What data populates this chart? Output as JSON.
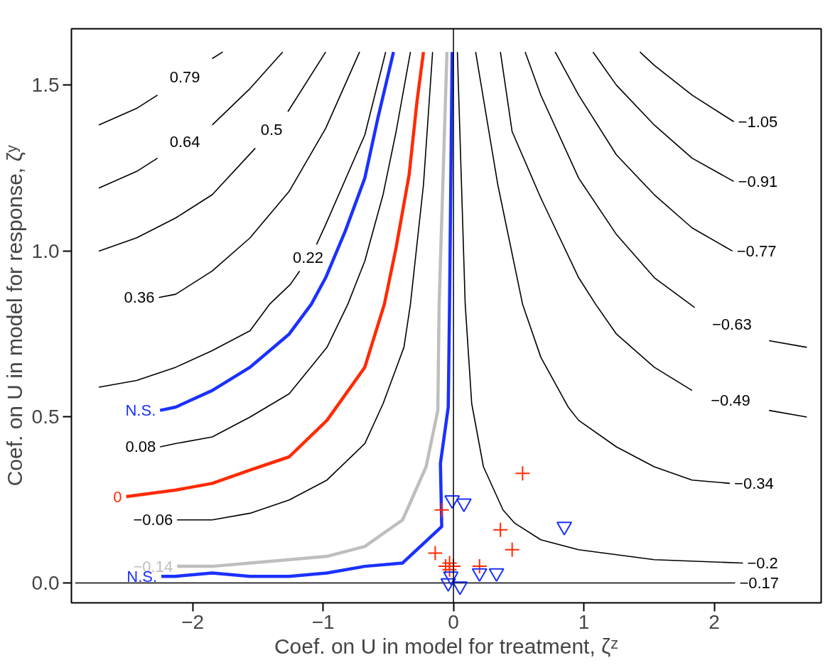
{
  "chart_data": {
    "type": "line",
    "xlabel": "Coef. on U in model for treatment, ζᶻ",
    "ylabel": "Coef. on U in model for response, ζʸ",
    "xlim": [
      -2.93,
      2.82
    ],
    "ylim": [
      -0.06,
      1.67
    ],
    "xticks": [
      {
        "value": -2,
        "label": "−2"
      },
      {
        "value": -1,
        "label": "−1"
      },
      0,
      1,
      2
    ],
    "yticks": [
      {
        "value": 0,
        "label": "0.0"
      },
      {
        "value": 0.5,
        "label": "0.5"
      },
      {
        "value": 1,
        "label": "1.0"
      },
      {
        "value": 1.5,
        "label": "1.5"
      }
    ],
    "grid": false,
    "marker": "none",
    "ref_lines": [
      {
        "axis": "x",
        "value": 0,
        "color": "#000000"
      }
    ],
    "series": [
      {
        "name": "0.79",
        "color": "#000000",
        "x": [
          -2.72,
          -2.43,
          -2.27,
          -2.06,
          -1.85,
          -1.77
        ],
        "values": [
          1.38,
          1.43,
          1.47,
          null,
          1.58,
          1.6
        ]
      },
      {
        "name": "0.64",
        "color": "#000000",
        "x": [
          -2.72,
          -2.43,
          -2.27,
          -2.06,
          -1.85,
          -1.56,
          -1.31
        ],
        "values": [
          1.19,
          1.24,
          1.28,
          null,
          1.38,
          1.49,
          1.6
        ]
      },
      {
        "name": "0.5",
        "color": "#000000",
        "x": [
          -2.72,
          -2.43,
          -2.13,
          -1.85,
          -1.52,
          -1.4,
          -1.27,
          -0.98
        ],
        "values": [
          1.0,
          1.04,
          1.1,
          1.17,
          1.31,
          null,
          1.42,
          1.6
        ]
      },
      {
        "name": "0.36",
        "color": "#000000",
        "x": [
          -2.26,
          -2.13,
          -1.85,
          -1.56,
          -1.26,
          -0.98,
          -0.72
        ],
        "values": [
          0.86,
          0.87,
          0.94,
          1.04,
          1.18,
          1.37,
          1.6
        ]
      },
      {
        "name": "0.22",
        "color": "#000000",
        "x": [
          -2.72,
          -2.43,
          -2.13,
          -1.85,
          -1.56,
          -1.41,
          -1.25,
          -1.18,
          -1.12,
          -1.05,
          -0.98,
          -0.68,
          -0.52
        ],
        "values": [
          0.59,
          0.61,
          0.65,
          0.7,
          0.76,
          0.84,
          0.9,
          0.94,
          null,
          1.02,
          1.08,
          1.35,
          1.6
        ]
      },
      {
        "name": "N.S.",
        "color": "#1a31ff",
        "x": [
          -2.25,
          -2.13,
          -1.85,
          -1.56,
          -1.26,
          -1.09,
          -0.98,
          -0.83,
          -0.68,
          -0.58,
          -0.46
        ],
        "values": [
          0.52,
          0.53,
          0.58,
          0.65,
          0.75,
          0.84,
          0.92,
          1.06,
          1.22,
          1.4,
          1.6
        ]
      },
      {
        "name": "0.08",
        "color": "#000000",
        "x": [
          -2.25,
          -2.13,
          -1.85,
          -1.56,
          -1.26,
          -0.97,
          -0.81,
          -0.68,
          -0.54,
          -0.44,
          -0.33
        ],
        "values": [
          0.41,
          0.42,
          0.44,
          0.5,
          0.57,
          0.71,
          0.84,
          0.97,
          1.17,
          1.36,
          1.6
        ]
      },
      {
        "name": "0",
        "color": "#ff2a00",
        "x": [
          -2.51,
          -2.13,
          -1.85,
          -1.56,
          -1.26,
          -0.97,
          -0.68,
          -0.53,
          -0.44,
          -0.34,
          -0.28,
          -0.23
        ],
        "values": [
          0.26,
          0.28,
          0.3,
          0.34,
          0.38,
          0.49,
          0.65,
          0.84,
          1.01,
          1.23,
          1.45,
          1.6
        ]
      },
      {
        "name": "−0.06",
        "color": "#000000",
        "x": [
          -2.12,
          -1.85,
          -1.56,
          -1.26,
          -0.97,
          -0.68,
          -0.54,
          -0.38,
          -0.33,
          -0.23,
          -0.16
        ],
        "values": [
          0.19,
          0.19,
          0.21,
          0.25,
          0.31,
          0.42,
          0.54,
          0.71,
          0.84,
          1.2,
          1.6
        ]
      },
      {
        "name": "−0.14",
        "color": "#bebebe",
        "x": [
          -2.12,
          -1.85,
          -1.56,
          -1.26,
          -0.97,
          -0.68,
          -0.39,
          -0.21,
          -0.12,
          -0.11,
          -0.05
        ],
        "values": [
          0.05,
          0.05,
          0.06,
          0.07,
          0.08,
          0.11,
          0.19,
          0.35,
          0.52,
          0.84,
          1.6
        ]
      },
      {
        "name": "N.S.",
        "color": "#1a31ff",
        "x": [
          -2.24,
          -2.13,
          -1.85,
          -1.56,
          -1.26,
          -0.97,
          -0.68,
          -0.39,
          -0.09,
          -0.1,
          -0.04,
          -0.03,
          -0.01
        ],
        "values": [
          0.02,
          0.02,
          0.03,
          0.02,
          0.02,
          0.03,
          0.05,
          0.06,
          0.17,
          0.36,
          0.53,
          0.84,
          1.6
        ]
      },
      {
        "name": "−0.2",
        "color": "#000000",
        "x": [
          2.22,
          1.54,
          0.96,
          0.67,
          0.47,
          0.38,
          0.23,
          0.14,
          0.09,
          0.03
        ],
        "values": [
          0.06,
          0.07,
          0.1,
          0.13,
          0.18,
          0.22,
          0.35,
          0.54,
          0.84,
          1.6
        ]
      },
      {
        "name": "−0.17",
        "color": "#000000",
        "x": [
          2.16,
          -2.9
        ],
        "values": [
          0,
          0
        ]
      },
      {
        "name": "−0.34",
        "color": "#000000",
        "x": [
          2.12,
          1.83,
          1.54,
          1.25,
          0.96,
          0.88,
          0.67,
          0.53,
          0.34,
          0.17
        ],
        "values": [
          0.3,
          0.31,
          0.35,
          0.41,
          0.49,
          0.53,
          0.68,
          0.84,
          1.2,
          1.6
        ]
      },
      {
        "name": "−0.49",
        "color": "#000000",
        "x": [
          0.36,
          0.45,
          0.67,
          0.96,
          1.09,
          1.25,
          1.54,
          1.83,
          2.12,
          2.42,
          2.71
        ],
        "values": [
          1.6,
          1.36,
          1.16,
          0.92,
          0.84,
          0.75,
          0.65,
          0.58,
          null,
          0.52,
          0.5
        ]
      },
      {
        "name": "−0.63",
        "color": "#000000",
        "x": [
          0.55,
          0.67,
          0.96,
          1.25,
          1.54,
          1.85,
          2.18,
          2.42,
          2.71
        ],
        "values": [
          1.6,
          1.47,
          1.22,
          1.05,
          0.92,
          0.83,
          null,
          0.73,
          0.71
        ]
      },
      {
        "name": "−0.77",
        "color": "#000000",
        "x": [
          2.14,
          1.83,
          1.54,
          1.25,
          0.96,
          0.78
        ],
        "values": [
          1.0,
          1.07,
          1.17,
          1.29,
          1.47,
          1.6
        ]
      },
      {
        "name": "−0.91",
        "color": "#000000",
        "x": [
          2.15,
          1.83,
          1.54,
          1.25,
          1.07
        ],
        "values": [
          1.21,
          1.28,
          1.38,
          1.5,
          1.6
        ]
      },
      {
        "name": "−1.05",
        "color": "#000000",
        "x": [
          2.15,
          1.83,
          1.54,
          1.43
        ],
        "values": [
          1.39,
          1.47,
          1.56,
          1.6
        ]
      },
      {
        "type": "scatter",
        "marker": "cross",
        "color": "#ff2a00",
        "x": [
          0.53,
          0.36,
          0.45,
          0.2,
          -0.03,
          -0.09,
          -0.14,
          -0.06,
          -0.03,
          0.0
        ],
        "values": [
          0.33,
          0.16,
          0.1,
          0.05,
          0.06,
          0.22,
          0.09,
          0.05,
          0.04,
          0.05
        ]
      },
      {
        "type": "scatter",
        "marker": "triangle",
        "color": "#1a31ff",
        "x": [
          0.85,
          0.08,
          -0.01,
          0.2,
          0.33,
          0.05,
          -0.04,
          -0.02
        ],
        "values": [
          0.17,
          0.24,
          0.25,
          0.03,
          0.03,
          -0.01,
          0.0,
          0.02
        ]
      }
    ]
  }
}
